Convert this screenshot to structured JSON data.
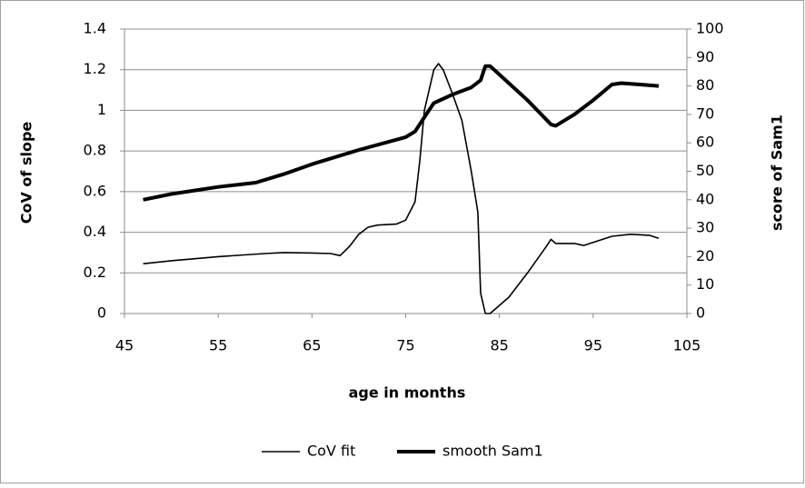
{
  "chart_data": {
    "type": "line",
    "x_label": "age in months",
    "y_label": "CoV of slope",
    "y2_label": "score of Sam1",
    "xlim": [
      45,
      105
    ],
    "xticks": [
      45,
      55,
      65,
      75,
      85,
      95,
      105
    ],
    "ylim": [
      0,
      1.4
    ],
    "yticks": [
      0,
      0.2,
      0.4,
      0.6,
      0.8,
      1,
      1.2,
      1.4
    ],
    "y2lim": [
      0,
      100
    ],
    "y2ticks": [
      0,
      10,
      20,
      30,
      40,
      50,
      60,
      70,
      80,
      90,
      100
    ],
    "grid": true,
    "legend": "bottom",
    "series": [
      {
        "name": "CoV fit",
        "color": "#000000",
        "width": 1.6,
        "x": [
          47,
          50,
          55,
          60,
          62,
          65,
          67,
          68,
          69,
          70,
          71,
          72,
          74,
          75,
          76,
          76.5,
          77,
          78,
          78.5,
          79,
          80,
          81,
          82,
          82.7,
          83,
          83.5,
          84,
          86,
          88,
          90,
          90.5,
          91,
          93,
          94,
          95,
          97,
          99,
          101,
          102
        ],
        "values": [
          0.245,
          0.26,
          0.28,
          0.295,
          0.3,
          0.298,
          0.295,
          0.285,
          0.33,
          0.39,
          0.425,
          0.435,
          0.44,
          0.46,
          0.55,
          0.75,
          1.0,
          1.2,
          1.23,
          1.2,
          1.08,
          0.95,
          0.7,
          0.5,
          0.1,
          0.0,
          0.0,
          0.08,
          0.2,
          0.33,
          0.365,
          0.345,
          0.345,
          0.335,
          0.35,
          0.38,
          0.39,
          0.385,
          0.37
        ]
      },
      {
        "name": "smooth Sam1",
        "color": "#000000",
        "width": 4,
        "axis": "y2",
        "x": [
          47,
          50,
          55,
          59,
          62,
          65,
          70,
          75,
          76,
          77,
          78,
          80,
          82,
          83,
          83.5,
          84,
          86,
          88,
          90.5,
          91,
          93,
          95,
          97,
          98,
          100,
          102
        ],
        "values": [
          40,
          42,
          44.5,
          46,
          49,
          52.5,
          57.5,
          62,
          64,
          69,
          74,
          77,
          79.5,
          82,
          87,
          87,
          81,
          75,
          66.5,
          66,
          70,
          75,
          80.5,
          81,
          80.5,
          80
        ]
      }
    ]
  }
}
